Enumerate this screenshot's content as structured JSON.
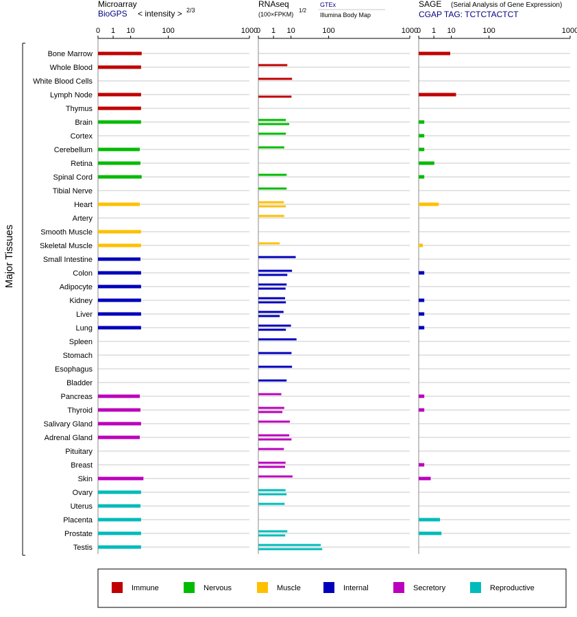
{
  "chart_data": {
    "type": "bar",
    "axis_label": "Major Tissues",
    "ticks": [
      "0",
      "1",
      "10",
      "100",
      "1000"
    ],
    "tick_values": [
      0,
      1,
      10,
      100,
      1000
    ],
    "xlim": [
      0,
      1000
    ],
    "grid": true,
    "colors": {
      "immune": "#c00000",
      "nervous": "#00bb00",
      "muscle": "#ffc000",
      "internal": "#0000bb",
      "secretory": "#bb00bb",
      "reproductive": "#00bbbb"
    },
    "panels": [
      {
        "id": "microarray",
        "title": "Microarray",
        "subtitle": "BioGPS",
        "unit": "< intensity >",
        "unit_exp": "2/3"
      },
      {
        "id": "rnaseq",
        "title": "RNAseq",
        "unit": "(100×FPKM)",
        "unit_exp": "1/2",
        "source_top": "GTEx",
        "source_bottom": "Illumina Body Map"
      },
      {
        "id": "sage",
        "title": "SAGE",
        "title_note": "(Serial Analysis of Gene Expression)",
        "subtitle": "CGAP TAG: TCTCTACTCT"
      }
    ],
    "legend": [
      {
        "key": "immune",
        "label": "Immune"
      },
      {
        "key": "nervous",
        "label": "Nervous"
      },
      {
        "key": "muscle",
        "label": "Muscle"
      },
      {
        "key": "internal",
        "label": "Internal"
      },
      {
        "key": "secretory",
        "label": "Secretory"
      },
      {
        "key": "reproductive",
        "label": "Reproductive"
      }
    ],
    "tissues": [
      {
        "name": "Bone Marrow",
        "group": "immune",
        "microarray": 24,
        "gtex": null,
        "ibm": null,
        "sage": 9
      },
      {
        "name": "Whole Blood",
        "group": "immune",
        "microarray": 23,
        "gtex": 7,
        "ibm": null,
        "sage": null
      },
      {
        "name": "White Blood Cells",
        "group": "immune",
        "microarray": null,
        "gtex": 11,
        "ibm": null,
        "sage": null
      },
      {
        "name": "Lymph Node",
        "group": "immune",
        "microarray": 23,
        "gtex": null,
        "ibm": 10.5,
        "sage": 15
      },
      {
        "name": "Thymus",
        "group": "immune",
        "microarray": 23,
        "gtex": null,
        "ibm": null,
        "sage": null
      },
      {
        "name": "Brain",
        "group": "nervous",
        "microarray": 23,
        "gtex": 6,
        "ibm": 8.5,
        "sage": 0.05
      },
      {
        "name": "Cortex",
        "group": "nervous",
        "microarray": null,
        "gtex": 6,
        "ibm": null,
        "sage": 0.05
      },
      {
        "name": "Cerebellum",
        "group": "nervous",
        "microarray": 21,
        "gtex": 5,
        "ibm": null,
        "sage": 0.05
      },
      {
        "name": "Retina",
        "group": "nervous",
        "microarray": 22,
        "gtex": null,
        "ibm": null,
        "sage": 1.1
      },
      {
        "name": "Spinal Cord",
        "group": "nervous",
        "microarray": 24,
        "gtex": 6.5,
        "ibm": null,
        "sage": 0.05
      },
      {
        "name": "Tibial Nerve",
        "group": "nervous",
        "microarray": null,
        "gtex": 6.5,
        "ibm": null,
        "sage": null
      },
      {
        "name": "Heart",
        "group": "muscle",
        "microarray": 21,
        "gtex": 4.8,
        "ibm": 6,
        "sage": 2.3
      },
      {
        "name": "Artery",
        "group": "muscle",
        "microarray": null,
        "gtex": 5,
        "ibm": null,
        "sage": null
      },
      {
        "name": "Smooth Muscle",
        "group": "muscle",
        "microarray": 23,
        "gtex": null,
        "ibm": null,
        "sage": null
      },
      {
        "name": "Skeletal Muscle",
        "group": "muscle",
        "microarray": 23,
        "gtex": 2.8,
        "ibm": null,
        "sage": 0.02
      },
      {
        "name": "Small Intestine",
        "group": "internal",
        "microarray": 22,
        "gtex": 15,
        "ibm": null,
        "sage": null
      },
      {
        "name": "Colon",
        "group": "internal",
        "microarray": 23,
        "gtex": 11,
        "ibm": 7,
        "sage": 0.05
      },
      {
        "name": "Adipocyte",
        "group": "internal",
        "microarray": 23,
        "gtex": 6.5,
        "ibm": 5.8,
        "sage": null
      },
      {
        "name": "Kidney",
        "group": "internal",
        "microarray": 23,
        "gtex": 5.5,
        "ibm": 6,
        "sage": 0.05
      },
      {
        "name": "Liver",
        "group": "internal",
        "microarray": 23,
        "gtex": 4.6,
        "ibm": 2.8,
        "sage": 0.05
      },
      {
        "name": "Lung",
        "group": "internal",
        "microarray": 23,
        "gtex": 10,
        "ibm": 6,
        "sage": 0.05
      },
      {
        "name": "Spleen",
        "group": "internal",
        "microarray": null,
        "gtex": 16,
        "ibm": null,
        "sage": null
      },
      {
        "name": "Stomach",
        "group": "internal",
        "microarray": null,
        "gtex": 10.5,
        "ibm": null,
        "sage": null
      },
      {
        "name": "Esophagus",
        "group": "internal",
        "microarray": null,
        "gtex": 11,
        "ibm": null,
        "sage": null
      },
      {
        "name": "Bladder",
        "group": "internal",
        "microarray": null,
        "gtex": 6.5,
        "ibm": null,
        "sage": null
      },
      {
        "name": "Pancreas",
        "group": "secretory",
        "microarray": 21,
        "gtex": 3.5,
        "ibm": null,
        "sage": 0.05
      },
      {
        "name": "Thyroid",
        "group": "secretory",
        "microarray": 22,
        "gtex": 5,
        "ibm": 4,
        "sage": 0.05
      },
      {
        "name": "Salivary Gland",
        "group": "secretory",
        "microarray": 23,
        "gtex": 9,
        "ibm": null,
        "sage": null
      },
      {
        "name": "Adrenal Gland",
        "group": "secretory",
        "microarray": 21,
        "gtex": 8.5,
        "ibm": 10.5,
        "sage": null
      },
      {
        "name": "Pituitary",
        "group": "secretory",
        "microarray": null,
        "gtex": 4.8,
        "ibm": null,
        "sage": null
      },
      {
        "name": "Breast",
        "group": "secretory",
        "microarray": null,
        "gtex": 5.8,
        "ibm": 5.5,
        "sage": 0.05
      },
      {
        "name": "Skin",
        "group": "secretory",
        "microarray": 27,
        "gtex": 11.5,
        "ibm": null,
        "sage": 0.5
      },
      {
        "name": "Ovary",
        "group": "reproductive",
        "microarray": 23,
        "gtex": 5.8,
        "ibm": 6.5,
        "sage": null
      },
      {
        "name": "Uterus",
        "group": "reproductive",
        "microarray": 22,
        "gtex": 5.2,
        "ibm": null,
        "sage": null
      },
      {
        "name": "Placenta",
        "group": "reproductive",
        "microarray": 23,
        "gtex": null,
        "ibm": null,
        "sage": 2.8
      },
      {
        "name": "Prostate",
        "group": "reproductive",
        "microarray": 23,
        "gtex": 7,
        "ibm": 5.6,
        "sage": 3.4
      },
      {
        "name": "Testis",
        "group": "reproductive",
        "microarray": 23,
        "gtex": 70,
        "ibm": 75,
        "sage": null
      }
    ]
  }
}
